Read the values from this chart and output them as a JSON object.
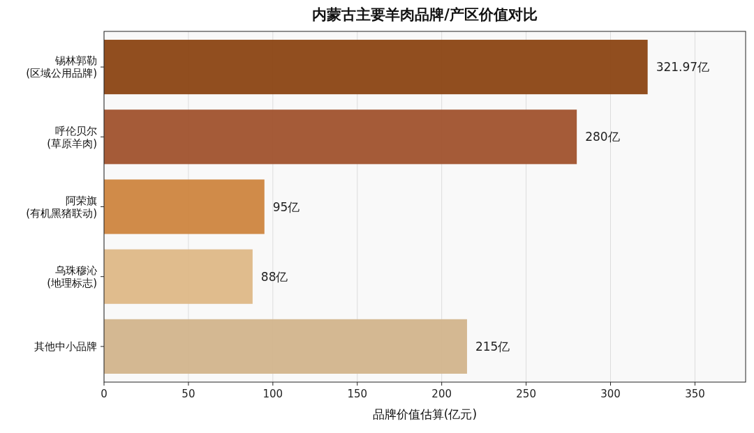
{
  "chart_data": {
    "type": "bar",
    "orientation": "horizontal",
    "title": "内蒙古主要羊肉品牌/产区价值对比",
    "xlabel": "品牌价值估算(亿元)",
    "categories": [
      "锡林郭勒\n(区域公用品牌)",
      "呼伦贝尔\n(草原羊肉)",
      "阿荣旗\n(有机黑猪联动)",
      "乌珠穆沁\n(地理标志)",
      "其他中小品牌"
    ],
    "values": [
      321.97,
      280,
      95,
      88,
      215
    ],
    "colors": [
      "#8b4513",
      "#a0522d",
      "#cd853f",
      "#deb887",
      "#d2b48c"
    ],
    "value_labels": [
      "321.97亿",
      "280亿",
      "95亿",
      "88亿",
      "215亿"
    ],
    "xlim": [
      0,
      380
    ],
    "xticks": [
      0,
      50,
      100,
      150,
      200,
      250,
      300,
      350
    ],
    "grid": "x"
  }
}
